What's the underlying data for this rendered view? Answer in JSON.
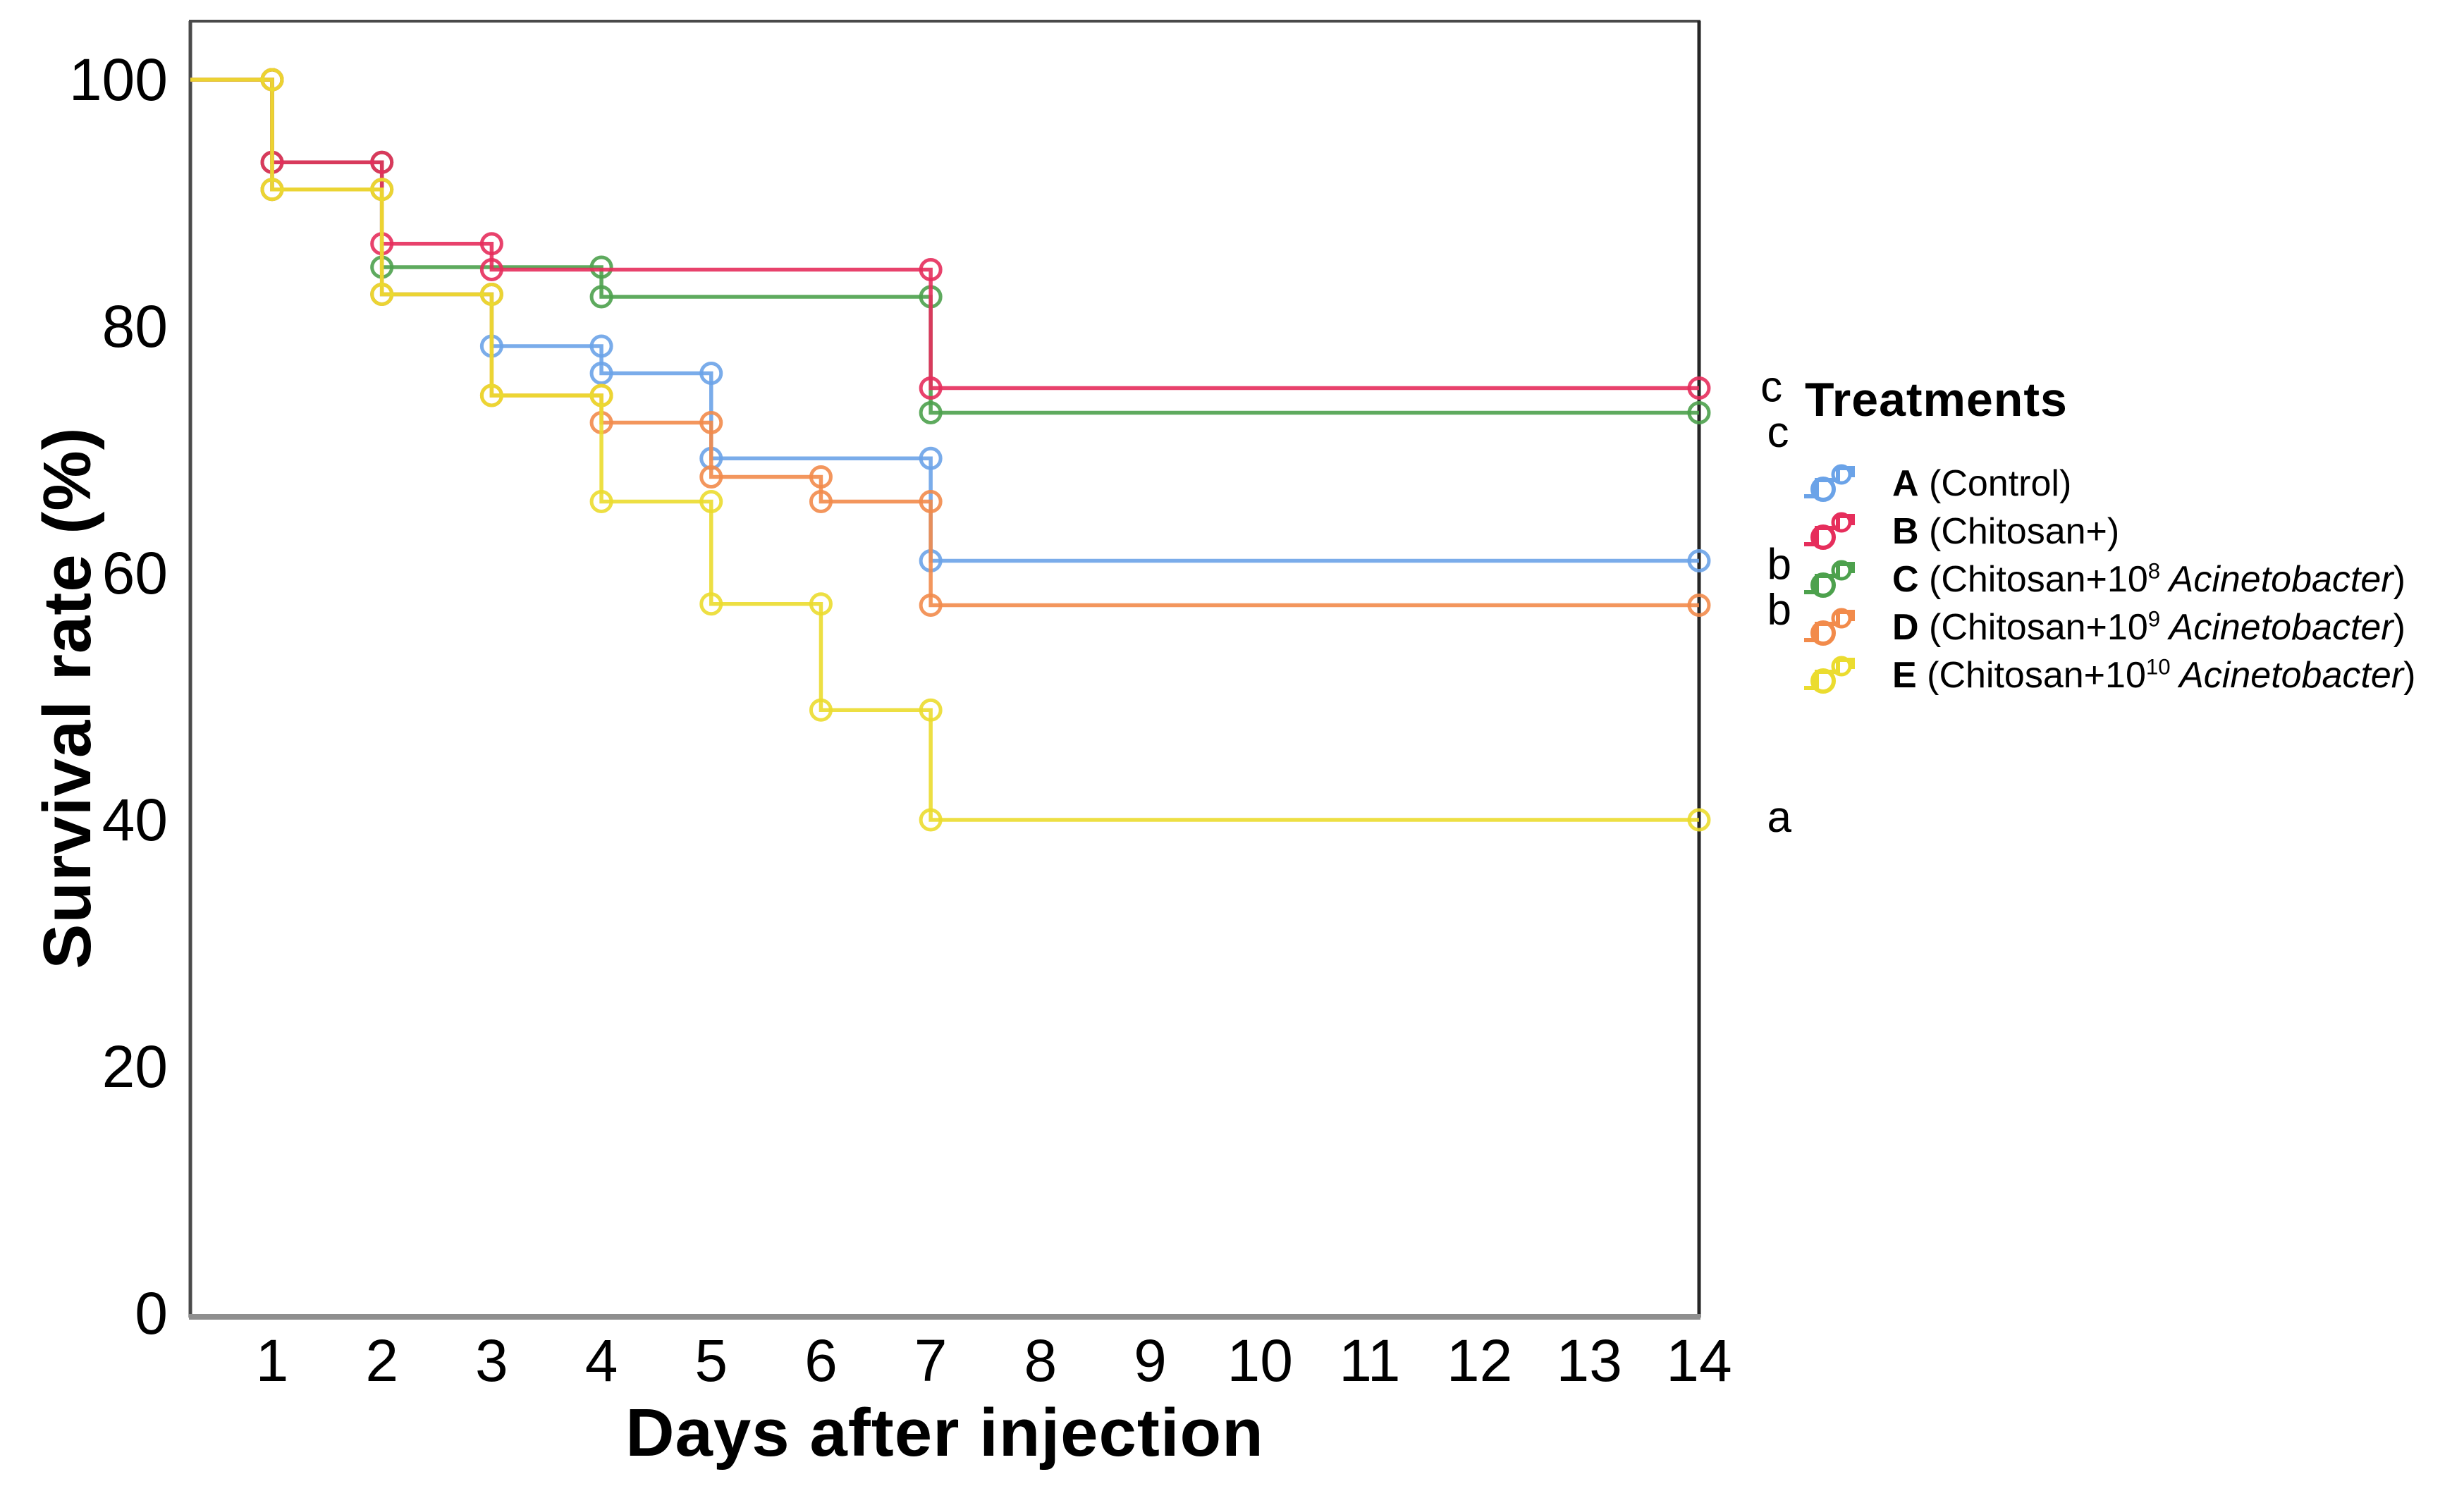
{
  "axes": {
    "x_title": "Days after injection",
    "y_title": "Survival rate (%)"
  },
  "legend": {
    "title": "Treatments",
    "items": [
      {
        "key": "A",
        "letter": "A",
        "pre": " (Control)",
        "sup": "",
        "italic": "",
        "post": "",
        "color": "#6BA3E8",
        "text": "A (Control)"
      },
      {
        "key": "B",
        "letter": "B",
        "pre": " (Chitosan+)",
        "sup": "",
        "italic": "",
        "post": "",
        "color": "#E62E5C",
        "text": "B (Chitosan+)"
      },
      {
        "key": "C",
        "letter": "C",
        "pre": " (Chitosan+10",
        "sup": "8",
        "italic": " Acinetobacter",
        "post": ")",
        "color": "#4DA14D",
        "text": "C (Chitosan+10⁸ Acinetobacter)"
      },
      {
        "key": "D",
        "letter": "D",
        "pre": " (Chitosan+10",
        "sup": "9",
        "italic": " Acinetobacter",
        "post": ")",
        "color": "#F28B4B",
        "text": "D (Chitosan+10⁹ Acinetobacter)"
      },
      {
        "key": "E",
        "letter": "E",
        "pre": " (Chitosan+10",
        "sup": "10",
        "italic": " Acinetobacter",
        "post": ")",
        "color": "#EBDC2F",
        "text": "E (Chitosan+10¹⁰ Acinetobacter)"
      }
    ]
  },
  "chart_data": {
    "type": "line",
    "subtype": "step-survival",
    "title": "",
    "xlabel": "Days after injection",
    "ylabel": "Survival rate (%)",
    "x_ticks": [
      1,
      2,
      3,
      4,
      5,
      6,
      7,
      8,
      9,
      10,
      11,
      12,
      13,
      14
    ],
    "y_ticks": [
      0,
      20,
      40,
      60,
      80,
      100
    ],
    "xlim": [
      0.25,
      14
    ],
    "ylim": [
      0,
      105
    ],
    "grid": false,
    "legend_position": "right",
    "start_value": 100,
    "end_day": 14,
    "draw_order": [
      "A",
      "C",
      "B",
      "D",
      "E"
    ],
    "series": [
      {
        "name": "A",
        "label": "A (Control)",
        "color": "#6BA3E8",
        "end_letter": "b",
        "final_value": 61.0,
        "events": [
          [
            1,
            91.1
          ],
          [
            2,
            82.6
          ],
          [
            3,
            78.4
          ],
          [
            4,
            76.2
          ],
          [
            5,
            69.3
          ],
          [
            7,
            61.0
          ]
        ]
      },
      {
        "name": "B",
        "label": "B (Chitosan+)",
        "color": "#E62E5C",
        "end_letter": "c",
        "final_value": 75.0,
        "events": [
          [
            1,
            93.3
          ],
          [
            2,
            86.7
          ],
          [
            3,
            84.6
          ],
          [
            7,
            75.0
          ]
        ]
      },
      {
        "name": "C",
        "label": "C (Chitosan+10⁸ Acinetobacter)",
        "color": "#4DA14D",
        "end_letter": "c",
        "final_value": 73.0,
        "events": [
          [
            1,
            93.3
          ],
          [
            2,
            84.8
          ],
          [
            4,
            82.4
          ],
          [
            7,
            73.0
          ]
        ]
      },
      {
        "name": "D",
        "label": "D (Chitosan+10⁹ Acinetobacter)",
        "color": "#F28B4B",
        "end_letter": "b",
        "final_value": 57.4,
        "events": [
          [
            1,
            91.1
          ],
          [
            2,
            82.6
          ],
          [
            3,
            74.4
          ],
          [
            4,
            72.2
          ],
          [
            5,
            67.8
          ],
          [
            6,
            65.8
          ],
          [
            7,
            57.4
          ]
        ]
      },
      {
        "name": "E",
        "label": "E (Chitosan+10¹⁰ Acinetobacter)",
        "color": "#EBDC2F",
        "end_letter": "a",
        "final_value": 40.0,
        "events": [
          [
            1,
            91.1
          ],
          [
            2,
            82.6
          ],
          [
            3,
            74.4
          ],
          [
            4,
            65.8
          ],
          [
            5,
            57.5
          ],
          [
            6,
            48.9
          ],
          [
            7,
            40.0
          ]
        ]
      }
    ],
    "annotations": [
      {
        "text": "c",
        "day": 14.56,
        "value": 75.1
      },
      {
        "text": "c",
        "day": 14.62,
        "value": 71.4
      },
      {
        "text": "b",
        "day": 14.62,
        "value": 60.7
      },
      {
        "text": "b",
        "day": 14.62,
        "value": 57.0
      },
      {
        "text": "a",
        "day": 14.62,
        "value": 40.2
      }
    ]
  }
}
